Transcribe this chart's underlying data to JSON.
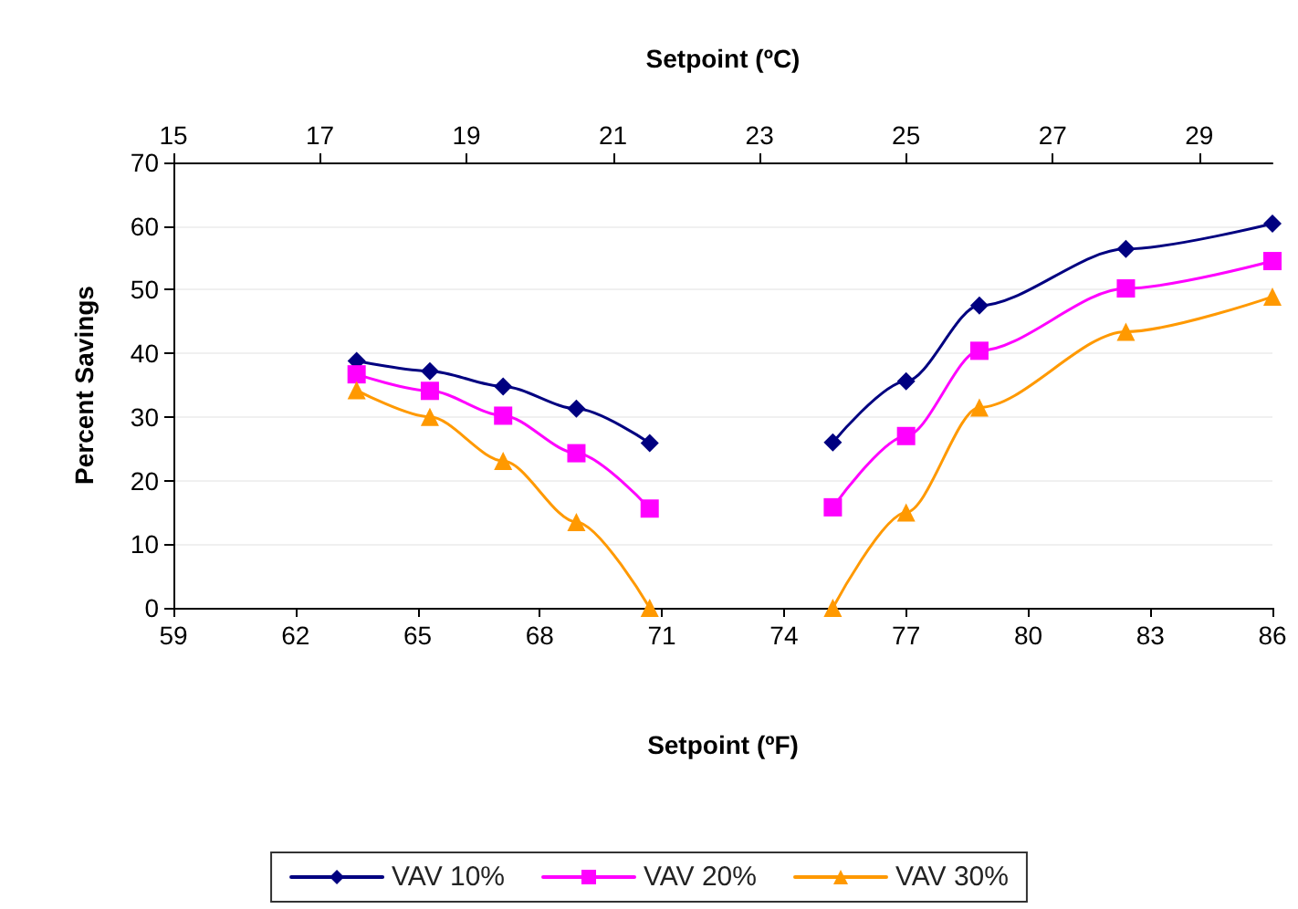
{
  "chart_data": {
    "type": "line",
    "xlabel": "Setpoint (ºF)",
    "x2label": "Setpoint (ºC)",
    "ylabel": "Percent Savings",
    "x": [
      63.5,
      65.3,
      67.1,
      68.9,
      70.7,
      73,
      75.2,
      77,
      78.8,
      82.4,
      86
    ],
    "series": [
      {
        "name": "VAV 10%",
        "color": "#000080",
        "marker": "diamond",
        "values": [
          38.8,
          37.2,
          34.8,
          31.3,
          25.9,
          null,
          26.0,
          35.6,
          47.5,
          56.4,
          60.4
        ]
      },
      {
        "name": "VAV 20%",
        "color": "#ff00ff",
        "marker": "square",
        "values": [
          36.7,
          34.1,
          30.2,
          24.3,
          15.6,
          null,
          15.8,
          27.0,
          40.4,
          50.2,
          54.5
        ]
      },
      {
        "name": "VAV 30%",
        "color": "#ff9900",
        "marker": "triangle",
        "values": [
          34.2,
          30.0,
          23.1,
          13.5,
          0,
          null,
          0,
          15.0,
          31.5,
          43.4,
          48.9
        ]
      }
    ],
    "xlim": [
      59,
      86
    ],
    "xticks": [
      59,
      62,
      65,
      68,
      71,
      74,
      77,
      80,
      83,
      86
    ],
    "x2lim": [
      15,
      30
    ],
    "x2ticks": [
      15,
      17,
      19,
      21,
      23,
      25,
      27,
      29
    ],
    "ylim": [
      0,
      70
    ],
    "yticks": [
      0,
      10,
      20,
      30,
      40,
      50,
      60,
      70
    ],
    "grid": "y",
    "legend": "bottom",
    "line_style": "solid"
  }
}
